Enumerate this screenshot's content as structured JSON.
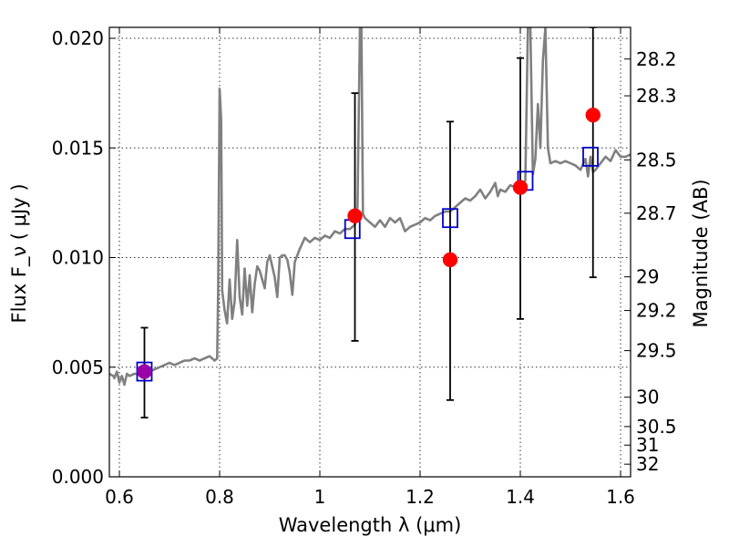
{
  "chart_data": {
    "type": "scatter",
    "xlabel": "Wavelength  λ (μm)",
    "ylabel_left": "Flux  F_ν  ( μJy )",
    "ylabel_right": "Magnitude (AB)",
    "xlim": [
      0.58,
      1.62
    ],
    "ylim": [
      0.0,
      0.0205
    ],
    "grid": true,
    "x_ticks": [
      {
        "value": 0.6,
        "label": "0.6"
      },
      {
        "value": 0.8,
        "label": "0.8"
      },
      {
        "value": 1.0,
        "label": "1"
      },
      {
        "value": 1.2,
        "label": "1.2"
      },
      {
        "value": 1.4,
        "label": "1.4"
      },
      {
        "value": 1.6,
        "label": "1.6"
      }
    ],
    "y_ticks": [
      {
        "value": 0.0,
        "label": "0.000"
      },
      {
        "value": 0.005,
        "label": "0.005"
      },
      {
        "value": 0.01,
        "label": "0.010"
      },
      {
        "value": 0.015,
        "label": "0.015"
      },
      {
        "value": 0.02,
        "label": "0.020"
      }
    ],
    "mag_ticks": [
      {
        "value": 28.2,
        "label": "28.2"
      },
      {
        "value": 28.3,
        "label": "28.3"
      },
      {
        "value": 28.5,
        "label": "28.5"
      },
      {
        "value": 28.7,
        "label": "28.7"
      },
      {
        "value": 29,
        "label": "29"
      },
      {
        "value": 29.2,
        "label": "29.2"
      },
      {
        "value": 29.5,
        "label": "29.5"
      },
      {
        "value": 30,
        "label": "30"
      },
      {
        "value": 30.5,
        "label": "30.5"
      },
      {
        "value": 31,
        "label": "31"
      },
      {
        "value": 32,
        "label": "32"
      }
    ],
    "colors": {
      "spectrum": "#808080",
      "model_box": "#0000cc",
      "observed": "#ff0000",
      "overlap": "#9900aa",
      "errorbar": "#000000"
    },
    "observed": [
      {
        "x": 0.65,
        "y": 0.0048,
        "err_lo": 0.0027,
        "err_hi": 0.0068
      },
      {
        "x": 1.07,
        "y": 0.0119,
        "err_lo": 0.0062,
        "err_hi": 0.0175
      },
      {
        "x": 1.26,
        "y": 0.0099,
        "err_lo": 0.0035,
        "err_hi": 0.0162
      },
      {
        "x": 1.4,
        "y": 0.0132,
        "err_lo": 0.0072,
        "err_hi": 0.0191
      },
      {
        "x": 1.545,
        "y": 0.0165,
        "err_lo": 0.0091,
        "err_hi": 0.0205
      }
    ],
    "model_boxes": [
      {
        "x": 0.65,
        "y": 0.0048
      },
      {
        "x": 1.065,
        "y": 0.0113
      },
      {
        "x": 1.26,
        "y": 0.0118
      },
      {
        "x": 1.41,
        "y": 0.0135
      },
      {
        "x": 1.54,
        "y": 0.0146
      }
    ],
    "spectrum": [
      [
        0.58,
        0.0047
      ],
      [
        0.588,
        0.0046
      ],
      [
        0.59,
        0.0045
      ],
      [
        0.595,
        0.0048
      ],
      [
        0.6,
        0.0043
      ],
      [
        0.605,
        0.0046
      ],
      [
        0.61,
        0.0042
      ],
      [
        0.615,
        0.0047
      ],
      [
        0.62,
        0.0046
      ],
      [
        0.63,
        0.0047
      ],
      [
        0.64,
        0.0047
      ],
      [
        0.65,
        0.0048
      ],
      [
        0.66,
        0.0048
      ],
      [
        0.67,
        0.0049
      ],
      [
        0.68,
        0.005
      ],
      [
        0.69,
        0.0051
      ],
      [
        0.7,
        0.0052
      ],
      [
        0.71,
        0.0051
      ],
      [
        0.72,
        0.0052
      ],
      [
        0.73,
        0.0053
      ],
      [
        0.74,
        0.0053
      ],
      [
        0.75,
        0.0054
      ],
      [
        0.76,
        0.0053
      ],
      [
        0.77,
        0.0054
      ],
      [
        0.78,
        0.0055
      ],
      [
        0.79,
        0.0053
      ],
      [
        0.795,
        0.0054
      ],
      [
        0.797,
        0.0085
      ],
      [
        0.8,
        0.0177
      ],
      [
        0.803,
        0.0163
      ],
      [
        0.805,
        0.0085
      ],
      [
        0.81,
        0.0076
      ],
      [
        0.815,
        0.007
      ],
      [
        0.82,
        0.009
      ],
      [
        0.825,
        0.0072
      ],
      [
        0.83,
        0.008
      ],
      [
        0.835,
        0.0108
      ],
      [
        0.84,
        0.0082
      ],
      [
        0.845,
        0.0074
      ],
      [
        0.85,
        0.0095
      ],
      [
        0.855,
        0.0078
      ],
      [
        0.86,
        0.0092
      ],
      [
        0.865,
        0.0075
      ],
      [
        0.87,
        0.0088
      ],
      [
        0.875,
        0.0096
      ],
      [
        0.88,
        0.0094
      ],
      [
        0.885,
        0.009
      ],
      [
        0.89,
        0.0086
      ],
      [
        0.895,
        0.0098
      ],
      [
        0.9,
        0.0101
      ],
      [
        0.91,
        0.0091
      ],
      [
        0.915,
        0.0082
      ],
      [
        0.92,
        0.01
      ],
      [
        0.925,
        0.0101
      ],
      [
        0.93,
        0.0101
      ],
      [
        0.935,
        0.0099
      ],
      [
        0.94,
        0.0093
      ],
      [
        0.945,
        0.0083
      ],
      [
        0.95,
        0.0098
      ],
      [
        0.96,
        0.0104
      ],
      [
        0.97,
        0.0109
      ],
      [
        0.98,
        0.0107
      ],
      [
        0.99,
        0.0109
      ],
      [
        1.0,
        0.0108
      ],
      [
        1.01,
        0.011
      ],
      [
        1.02,
        0.0109
      ],
      [
        1.03,
        0.0112
      ],
      [
        1.04,
        0.0111
      ],
      [
        1.05,
        0.0113
      ],
      [
        1.06,
        0.0113
      ],
      [
        1.07,
        0.0115
      ],
      [
        1.075,
        0.0123
      ],
      [
        1.08,
        0.0205
      ],
      [
        1.083,
        0.0205
      ],
      [
        1.086,
        0.012
      ],
      [
        1.09,
        0.0118
      ],
      [
        1.1,
        0.0116
      ],
      [
        1.11,
        0.0114
      ],
      [
        1.12,
        0.0117
      ],
      [
        1.13,
        0.0114
      ],
      [
        1.14,
        0.0118
      ],
      [
        1.15,
        0.0116
      ],
      [
        1.16,
        0.0118
      ],
      [
        1.17,
        0.0112
      ],
      [
        1.18,
        0.0114
      ],
      [
        1.19,
        0.0115
      ],
      [
        1.2,
        0.0116
      ],
      [
        1.21,
        0.0118
      ],
      [
        1.22,
        0.0117
      ],
      [
        1.23,
        0.0119
      ],
      [
        1.24,
        0.012
      ],
      [
        1.25,
        0.0121
      ],
      [
        1.26,
        0.0121
      ],
      [
        1.27,
        0.0123
      ],
      [
        1.28,
        0.0125
      ],
      [
        1.29,
        0.0127
      ],
      [
        1.3,
        0.0126
      ],
      [
        1.31,
        0.0128
      ],
      [
        1.32,
        0.0131
      ],
      [
        1.33,
        0.0127
      ],
      [
        1.34,
        0.013
      ],
      [
        1.35,
        0.0134
      ],
      [
        1.355,
        0.0128
      ],
      [
        1.36,
        0.0131
      ],
      [
        1.37,
        0.013
      ],
      [
        1.38,
        0.0133
      ],
      [
        1.39,
        0.0132
      ],
      [
        1.4,
        0.0133
      ],
      [
        1.41,
        0.0135
      ],
      [
        1.415,
        0.0205
      ],
      [
        1.42,
        0.0205
      ],
      [
        1.425,
        0.0138
      ],
      [
        1.43,
        0.0145
      ],
      [
        1.435,
        0.017
      ],
      [
        1.44,
        0.015
      ],
      [
        1.445,
        0.019
      ],
      [
        1.45,
        0.0205
      ],
      [
        1.455,
        0.015
      ],
      [
        1.46,
        0.0143
      ],
      [
        1.47,
        0.0144
      ],
      [
        1.48,
        0.0143
      ],
      [
        1.49,
        0.0144
      ],
      [
        1.5,
        0.0143
      ],
      [
        1.51,
        0.0142
      ],
      [
        1.52,
        0.014
      ],
      [
        1.53,
        0.0145
      ],
      [
        1.535,
        0.0137
      ],
      [
        1.54,
        0.0146
      ],
      [
        1.545,
        0.0139
      ],
      [
        1.55,
        0.014
      ],
      [
        1.56,
        0.0143
      ],
      [
        1.57,
        0.0146
      ],
      [
        1.58,
        0.0144
      ],
      [
        1.59,
        0.0149
      ],
      [
        1.6,
        0.0146
      ],
      [
        1.61,
        0.0146
      ],
      [
        1.62,
        0.0147
      ]
    ]
  }
}
